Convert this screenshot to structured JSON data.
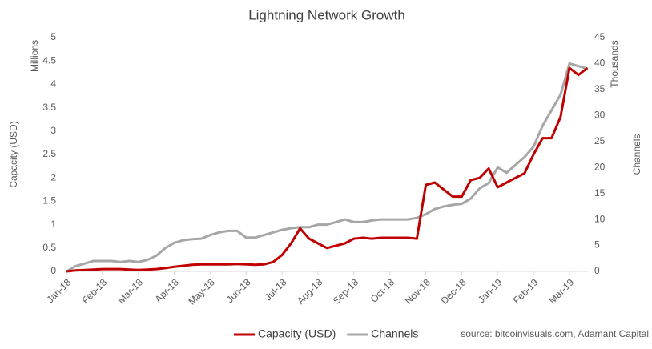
{
  "chart_data": {
    "type": "line",
    "title": "Lightning Network Growth",
    "y_label": "Capacity (USD)",
    "y_unit_label": "Millions",
    "y2_label": "Channels",
    "y2_unit_label": "Thousands",
    "source": "source: bitcoinvisuals.com, Adamant Capital",
    "categories": [
      "Jan-18",
      null,
      null,
      null,
      "Feb-18",
      null,
      null,
      null,
      "Mar-18",
      null,
      null,
      null,
      "Apr-18",
      null,
      null,
      null,
      "May-18",
      null,
      null,
      null,
      "Jun-18",
      null,
      null,
      null,
      "Jul-18",
      null,
      null,
      null,
      "Aug-18",
      null,
      null,
      null,
      "Sep-18",
      null,
      null,
      null,
      "Oct-18",
      null,
      null,
      null,
      "Nov-18",
      null,
      null,
      null,
      "Dec-18",
      null,
      null,
      null,
      "Jan-19",
      null,
      null,
      null,
      "Feb-19",
      null,
      null,
      null,
      "Mar-19",
      null,
      null
    ],
    "series": [
      {
        "name": "Capacity (USD)",
        "color": "#c00000",
        "values": [
          0,
          0.02,
          0.03,
          0.04,
          0.05,
          0.05,
          0.05,
          0.04,
          0.03,
          0.04,
          0.05,
          0.07,
          0.1,
          0.12,
          0.14,
          0.15,
          0.15,
          0.15,
          0.15,
          0.16,
          0.15,
          0.14,
          0.15,
          0.2,
          0.35,
          0.6,
          0.92,
          0.7,
          0.6,
          0.5,
          0.55,
          0.6,
          0.7,
          0.72,
          0.7,
          0.72,
          0.72,
          0.72,
          0.72,
          0.7,
          1.85,
          1.9,
          1.75,
          1.6,
          1.6,
          1.95,
          2.0,
          2.2,
          1.8,
          1.9,
          2.0,
          2.1,
          2.5,
          2.85,
          2.85,
          3.3,
          4.35,
          4.2,
          4.35
        ]
      },
      {
        "name": "Channels",
        "color": "#a6a6a6",
        "axis": "y2",
        "values": [
          0,
          1,
          1.5,
          2,
          2,
          2,
          1.8,
          2,
          1.8,
          2.2,
          3,
          4.5,
          5.5,
          6,
          6.2,
          6.3,
          7,
          7.5,
          7.8,
          7.8,
          6.5,
          6.5,
          7,
          7.5,
          8,
          8.3,
          8.5,
          8.5,
          9,
          9,
          9.5,
          10,
          9.5,
          9.5,
          9.8,
          10,
          10,
          10,
          10,
          10.3,
          11,
          12,
          12.5,
          12.8,
          13,
          14,
          16,
          17,
          20,
          19,
          20.5,
          22,
          24,
          28,
          31,
          34,
          40,
          39.5,
          39
        ]
      }
    ],
    "ylim": [
      0,
      5
    ],
    "yticks": [
      0,
      0.5,
      1,
      1.5,
      2,
      2.5,
      3,
      3.5,
      4,
      4.5,
      5
    ],
    "y2lim": [
      0,
      45
    ],
    "y2ticks": [
      0,
      5,
      10,
      15,
      20,
      25,
      30,
      35,
      40,
      45
    ],
    "grid": false,
    "legend": "bottom"
  }
}
